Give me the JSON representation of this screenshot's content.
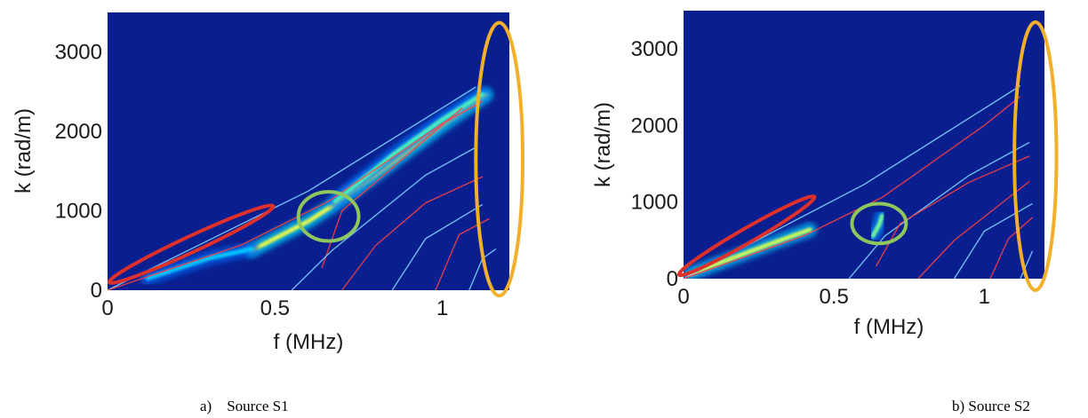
{
  "chart_data": [
    {
      "type": "heatmap",
      "caption": "a) Source S1",
      "xlabel": "f (MHz)",
      "ylabel": "k (rad/m)",
      "xlim": [
        0,
        1.2
      ],
      "ylim": [
        0,
        3500
      ],
      "x_ticks": [
        0,
        0.5,
        1
      ],
      "x_tick_labels": [
        "0",
        "0.5",
        "1"
      ],
      "y_ticks": [
        0,
        1000,
        2000,
        3000
      ],
      "y_tick_labels": [
        "0",
        "1000",
        "2000",
        "3000"
      ],
      "colormap": "jet",
      "dispersion_curves": [
        {
          "color": "#7fd8ff",
          "points": [
            [
              0,
              0
            ],
            [
              0.6,
              1250
            ],
            [
              1.1,
              2560
            ]
          ]
        },
        {
          "color": "#ff4040",
          "points": [
            [
              0,
              0
            ],
            [
              0.4,
              570
            ],
            [
              0.66,
              1120
            ],
            [
              1.0,
              2100
            ],
            [
              1.12,
              2380
            ]
          ]
        },
        {
          "color": "#ff4040",
          "points": [
            [
              0.64,
              280
            ],
            [
              0.7,
              1000
            ],
            [
              1.06,
              2300
            ]
          ]
        },
        {
          "color": "#7fd8ff",
          "points": [
            [
              0.55,
              0
            ],
            [
              0.67,
              500
            ],
            [
              0.95,
              1450
            ],
            [
              1.1,
              1800
            ]
          ]
        },
        {
          "color": "#ff4040",
          "points": [
            [
              0.7,
              0
            ],
            [
              0.8,
              560
            ],
            [
              0.95,
              1100
            ],
            [
              1.12,
              1430
            ]
          ]
        },
        {
          "color": "#7fd8ff",
          "points": [
            [
              0.85,
              0
            ],
            [
              0.95,
              650
            ],
            [
              1.12,
              1080
            ]
          ]
        },
        {
          "color": "#ff4040",
          "points": [
            [
              0.98,
              0
            ],
            [
              1.05,
              700
            ],
            [
              1.14,
              900
            ]
          ]
        },
        {
          "color": "#7fd8ff",
          "points": [
            [
              1.08,
              0
            ],
            [
              1.12,
              400
            ],
            [
              1.16,
              520
            ]
          ]
        }
      ],
      "energy_ridges": [
        {
          "intensity": 0.95,
          "points": [
            [
              0.43,
              500
            ],
            [
              0.6,
              870
            ],
            [
              0.67,
              1060
            ],
            [
              0.8,
              1450
            ],
            [
              1.0,
              2080
            ],
            [
              1.13,
              2460
            ]
          ]
        },
        {
          "intensity": 0.7,
          "points": [
            [
              0.68,
              1120
            ],
            [
              0.85,
              1700
            ],
            [
              1.0,
              2150
            ],
            [
              1.12,
              2470
            ]
          ]
        },
        {
          "intensity": 0.55,
          "points": [
            [
              0.12,
              150
            ],
            [
              0.3,
              400
            ],
            [
              0.43,
              520
            ]
          ]
        }
      ],
      "highlights": [
        {
          "color": "#e0302c",
          "center": [
            0.25,
            580
          ],
          "rx": 0.27,
          "ry": 100,
          "angle": -25
        },
        {
          "color": "#8fc65e",
          "center": [
            0.66,
            930
          ],
          "rx": 0.09,
          "ry": 310,
          "angle": 0
        },
        {
          "color": "#f2b02a",
          "center": [
            1.17,
            1650
          ],
          "rx": 0.07,
          "ry": 1720,
          "angle": 0
        }
      ]
    },
    {
      "type": "heatmap",
      "caption": "b) Source S2",
      "xlabel": "f (MHz)",
      "ylabel": "k (rad/m)",
      "xlim": [
        0,
        1.2
      ],
      "ylim": [
        0,
        3500
      ],
      "x_ticks": [
        0,
        0.5,
        1
      ],
      "x_tick_labels": [
        "0",
        "0.5",
        "1"
      ],
      "y_ticks": [
        0,
        1000,
        2000,
        3000
      ],
      "y_tick_labels": [
        "0",
        "1000",
        "2000",
        "3000"
      ],
      "colormap": "jet",
      "dispersion_curves": [
        {
          "color": "#7fd8ff",
          "points": [
            [
              0,
              0
            ],
            [
              0.6,
              1230
            ],
            [
              1.12,
              2520
            ]
          ]
        },
        {
          "color": "#ff4040",
          "points": [
            [
              0,
              0
            ],
            [
              0.4,
              560
            ],
            [
              0.66,
              1060
            ],
            [
              1.0,
              2000
            ],
            [
              1.12,
              2380
            ]
          ]
        },
        {
          "color": "#7fd8ff",
          "points": [
            [
              0.55,
              0
            ],
            [
              0.67,
              560
            ],
            [
              0.95,
              1350
            ],
            [
              1.15,
              1780
            ]
          ]
        },
        {
          "color": "#ff4040",
          "points": [
            [
              0.64,
              160
            ],
            [
              0.72,
              720
            ],
            [
              0.95,
              1260
            ],
            [
              1.15,
              1600
            ]
          ]
        },
        {
          "color": "#ff4040",
          "points": [
            [
              0.78,
              0
            ],
            [
              0.9,
              500
            ],
            [
              1.15,
              1270
            ]
          ]
        },
        {
          "color": "#7fd8ff",
          "points": [
            [
              0.9,
              0
            ],
            [
              1.0,
              620
            ],
            [
              1.16,
              980
            ]
          ]
        },
        {
          "color": "#ff4040",
          "points": [
            [
              1.02,
              0
            ],
            [
              1.08,
              520
            ],
            [
              1.16,
              800
            ]
          ]
        },
        {
          "color": "#7fd8ff",
          "points": [
            [
              1.12,
              0
            ],
            [
              1.16,
              360
            ]
          ]
        }
      ],
      "energy_ridges": [
        {
          "intensity": 0.9,
          "points": [
            [
              0.02,
              60
            ],
            [
              0.15,
              250
            ],
            [
              0.3,
              470
            ],
            [
              0.42,
              640
            ]
          ]
        },
        {
          "intensity": 0.75,
          "points": [
            [
              0.63,
              560
            ],
            [
              0.65,
              700
            ],
            [
              0.66,
              820
            ]
          ]
        }
      ],
      "highlights": [
        {
          "color": "#e0302c",
          "center": [
            0.21,
            560
          ],
          "rx": 0.26,
          "ry": 95,
          "angle": -30
        },
        {
          "color": "#8fc65e",
          "center": [
            0.65,
            720
          ],
          "rx": 0.09,
          "ry": 260,
          "angle": 0
        },
        {
          "color": "#f2b02a",
          "center": [
            1.17,
            1600
          ],
          "rx": 0.07,
          "ry": 1750,
          "angle": 0
        }
      ]
    }
  ]
}
